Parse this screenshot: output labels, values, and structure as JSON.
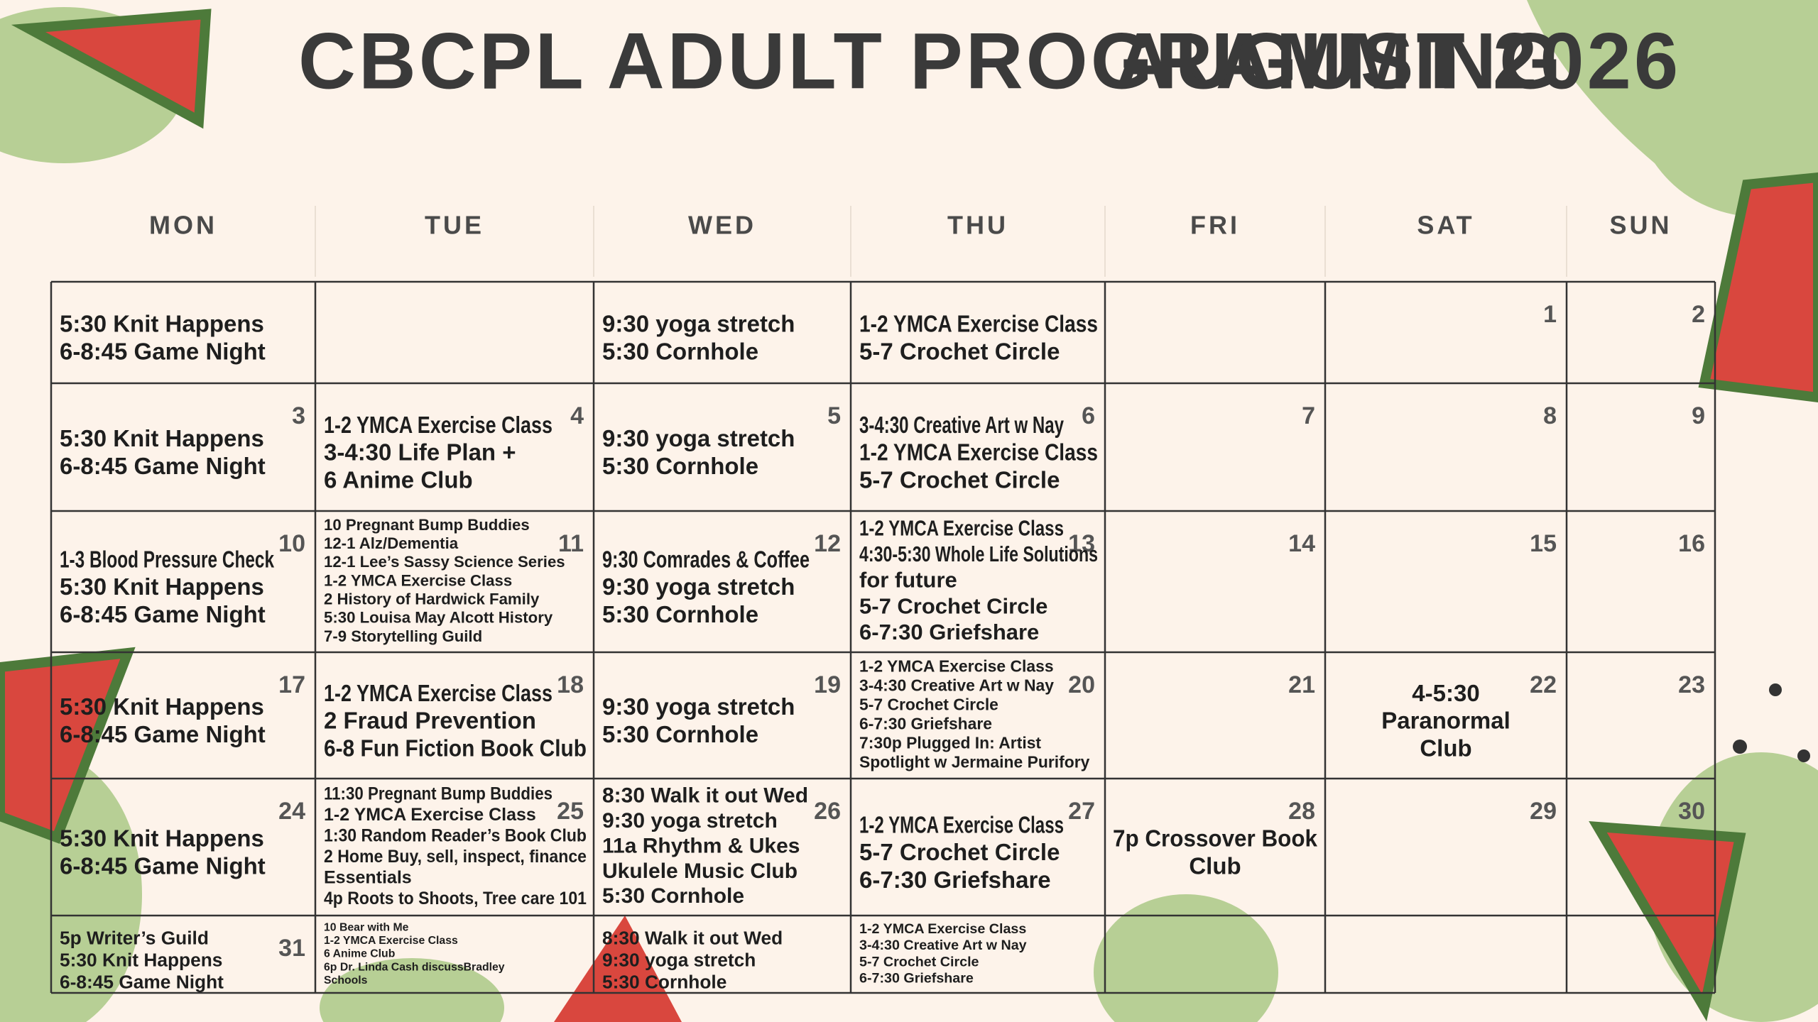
{
  "header": {
    "title": "CBCPL ADULT PROGRAMMING",
    "month": "AUGUST 2026"
  },
  "weekdays": [
    "MON",
    "TUE",
    "WED",
    "THU",
    "FRI",
    "SAT",
    "SUN"
  ],
  "weeks": [
    [
      {
        "events": [
          "5:30 Knit Happens",
          "6-8:45 Game Night"
        ]
      },
      {
        "events": []
      },
      {
        "events": [
          "9:30 yoga stretch",
          "5:30 Cornhole"
        ]
      },
      {
        "events": [
          "1-2 YMCA Exercise Class",
          "5-7 Crochet Circle"
        ]
      },
      {
        "events": []
      },
      {
        "day": "1",
        "events": []
      },
      {
        "day": "2",
        "events": []
      }
    ],
    [
      {
        "day": "3",
        "events": [
          "5:30 Knit Happens",
          "6-8:45 Game Night"
        ]
      },
      {
        "day": "4",
        "events": [
          "1-2 YMCA Exercise Class",
          "3-4:30 Life Plan +",
          "6 Anime Club"
        ]
      },
      {
        "day": "5",
        "events": [
          "9:30 yoga stretch",
          "5:30 Cornhole"
        ]
      },
      {
        "day": "6",
        "events": [
          "3-4:30 Creative Art w Nay",
          "1-2 YMCA Exercise Class",
          "5-7 Crochet Circle"
        ]
      },
      {
        "day": "7",
        "events": []
      },
      {
        "day": "8",
        "events": []
      },
      {
        "day": "9",
        "events": []
      }
    ],
    [
      {
        "day": "10",
        "events": [
          "1-3 Blood Pressure Check",
          "5:30 Knit Happens",
          "6-8:45 Game Night"
        ]
      },
      {
        "day": "11",
        "events": [
          "10 Pregnant Bump Buddies",
          "12-1 Alz/Dementia",
          "12-1 Lee’s Sassy Science Series",
          "1-2 YMCA Exercise Class",
          "2 History of Hardwick Family",
          "5:30 Louisa May Alcott History",
          "7-9 Storytelling Guild"
        ]
      },
      {
        "day": "12",
        "events": [
          "9:30 Comrades & Coffee",
          "9:30 yoga stretch",
          "5:30 Cornhole"
        ]
      },
      {
        "day": "13",
        "events": [
          "1-2 YMCA Exercise Class",
          "4:30-5:30 Whole Life Solutions",
          "for future",
          "5-7 Crochet Circle",
          "6-7:30 Griefshare"
        ]
      },
      {
        "day": "14",
        "events": []
      },
      {
        "day": "15",
        "events": []
      },
      {
        "day": "16",
        "events": []
      }
    ],
    [
      {
        "day": "17",
        "events": [
          "5:30 Knit Happens",
          "6-8:45 Game Night"
        ]
      },
      {
        "day": "18",
        "events": [
          "1-2 YMCA Exercise Class",
          "2 Fraud Prevention",
          "6-8 Fun Fiction Book Club"
        ]
      },
      {
        "day": "19",
        "events": [
          "9:30 yoga stretch",
          "5:30 Cornhole"
        ]
      },
      {
        "day": "20",
        "events": [
          "1-2 YMCA Exercise Class",
          "3-4:30 Creative Art w Nay",
          "5-7 Crochet Circle",
          "6-7:30 Griefshare",
          "7:30p Plugged In: Artist",
          "Spotlight w Jermaine Purifory"
        ]
      },
      {
        "day": "21",
        "events": []
      },
      {
        "day": "22",
        "events": [
          "4-5:30",
          "Paranormal",
          "Club"
        ]
      },
      {
        "day": "23",
        "events": []
      }
    ],
    [
      {
        "day": "24",
        "events": [
          "5:30 Knit Happens",
          "6-8:45 Game Night"
        ]
      },
      {
        "day": "25",
        "events": [
          "11:30 Pregnant Bump Buddies",
          "1-2 YMCA Exercise Class",
          "1:30 Random Reader’s Book Club",
          "2 Home Buy, sell, inspect, finance",
          "Essentials",
          "4p Roots to Shoots, Tree care 101"
        ]
      },
      {
        "day": "26",
        "events": [
          "8:30 Walk it out Wed",
          "9:30 yoga stretch",
          "11a Rhythm & Ukes",
          "Ukulele Music Club",
          "5:30 Cornhole"
        ]
      },
      {
        "day": "27",
        "events": [
          "1-2 YMCA Exercise Class",
          "5-7 Crochet Circle",
          "6-7:30 Griefshare"
        ]
      },
      {
        "day": "28",
        "events": [
          "7p Crossover Book",
          "Club"
        ]
      },
      {
        "day": "29",
        "events": []
      },
      {
        "day": "30",
        "events": []
      }
    ],
    [
      {
        "day": "31",
        "events": [
          "5p Writer’s Guild",
          "5:30 Knit Happens",
          "6-8:45 Game Night"
        ]
      },
      {
        "events": [
          "10 Bear with Me",
          "1-2 YMCA Exercise Class",
          "6 Anime Club",
          "6p Dr. Linda Cash discussBradley",
          "Schools"
        ]
      },
      {
        "events": [
          "8:30 Walk it out Wed",
          "9:30 yoga stretch",
          "5:30 Cornhole"
        ]
      },
      {
        "events": [
          "1-2 YMCA Exercise Class",
          "3-4:30 Creative Art w Nay",
          "5-7 Crochet Circle",
          "6-7:30 Griefshare"
        ]
      },
      {
        "events": []
      },
      {
        "events": []
      },
      {
        "events": []
      }
    ]
  ]
}
